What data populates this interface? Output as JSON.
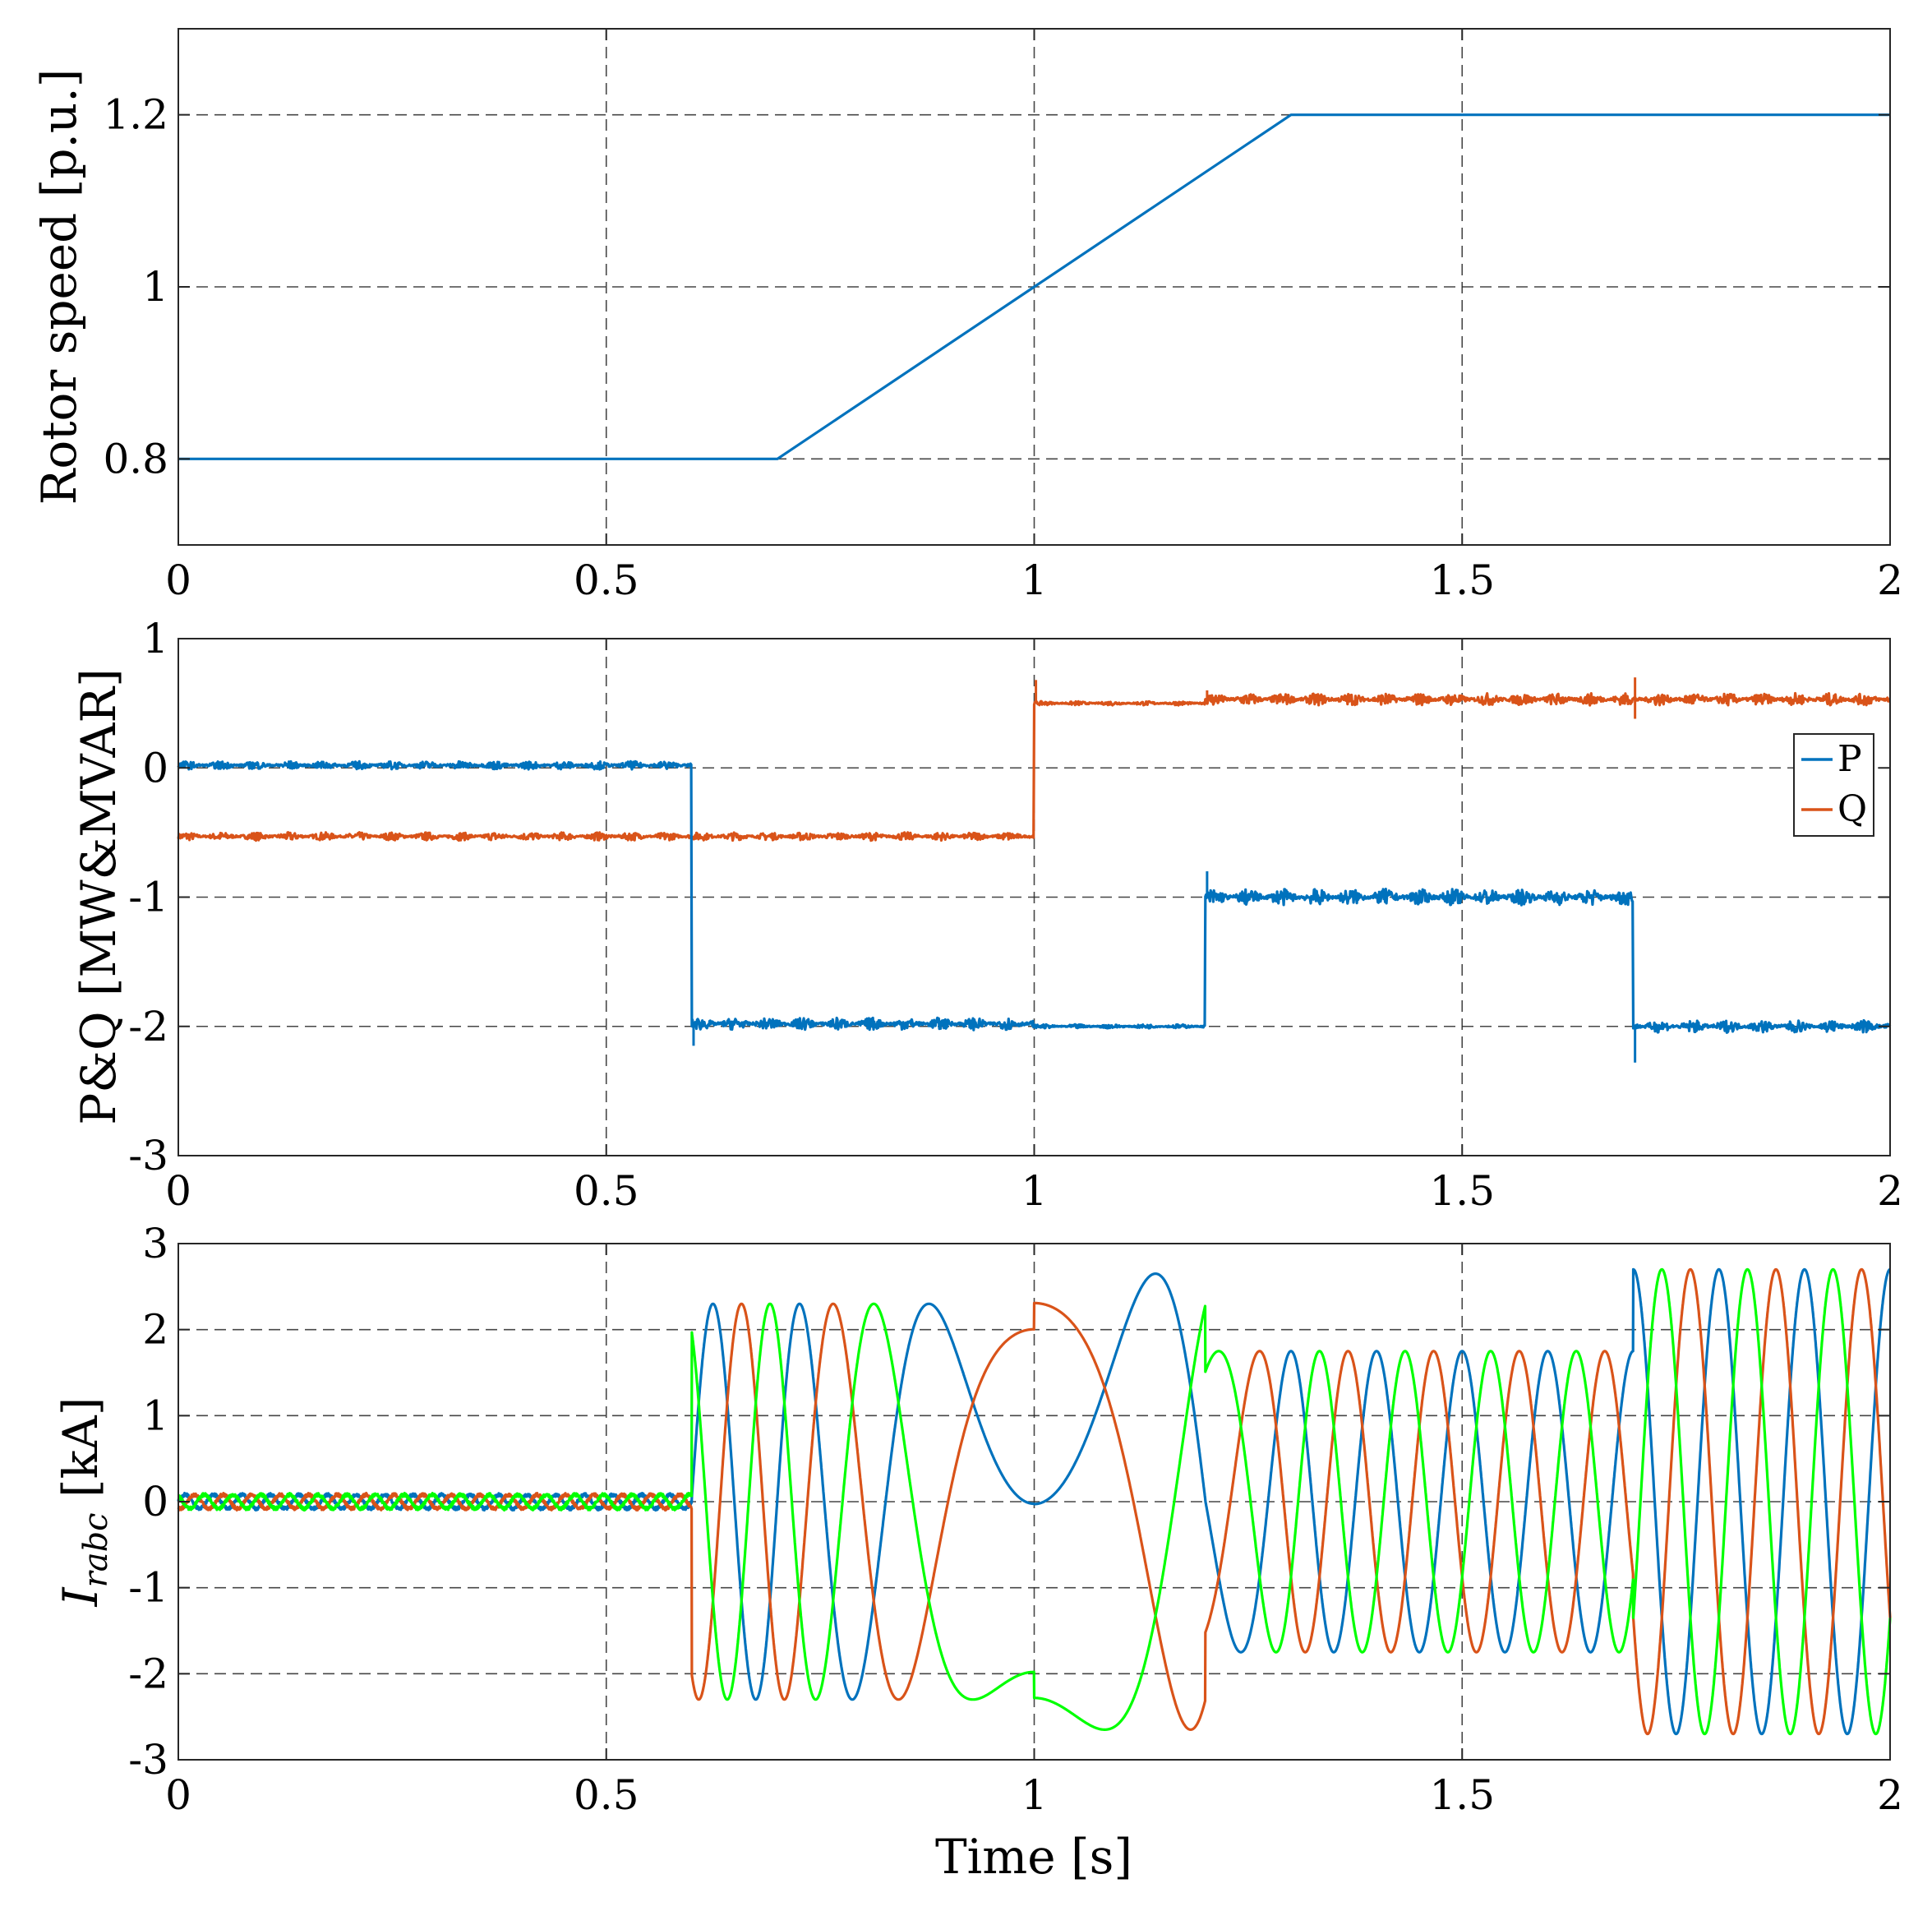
{
  "colors": {
    "blue": "#0072BD",
    "orange": "#D95319",
    "green": "#00FF00"
  },
  "chart_data": [
    {
      "id": "rotor-speed",
      "type": "line",
      "title": "",
      "xlabel": "",
      "ylabel": "Rotor speed [p.u.]",
      "xlim": [
        0,
        2
      ],
      "ylim": [
        0.7,
        1.3
      ],
      "xticks": [
        0,
        0.5,
        1,
        1.5,
        2
      ],
      "xtick_labels": [
        "0",
        "0.5",
        "1",
        "1.5",
        "2"
      ],
      "yticks": [
        0.8,
        1,
        1.2
      ],
      "ytick_labels": [
        "0.8",
        "1",
        "1.2"
      ],
      "grid": true,
      "legend": null,
      "series": [
        {
          "name": "Rotor speed",
          "color": "#0072BD",
          "x": [
            0,
            0.7,
            1.0,
            1.3,
            2.0
          ],
          "y": [
            0.8,
            0.8,
            1.0,
            1.2,
            1.2
          ]
        }
      ]
    },
    {
      "id": "power",
      "type": "line",
      "title": "",
      "xlabel": "",
      "ylabel": "P&Q [MW&MVAR]",
      "xlim": [
        0,
        2
      ],
      "ylim": [
        -3,
        1
      ],
      "xticks": [
        0,
        0.5,
        1,
        1.5,
        2
      ],
      "xtick_labels": [
        "0",
        "0.5",
        "1",
        "1.5",
        "2"
      ],
      "yticks": [
        -3,
        -2,
        -1,
        0,
        1
      ],
      "ytick_labels": [
        "-3",
        "-2",
        "-1",
        "0",
        "1"
      ],
      "grid": true,
      "legend": {
        "position": "right",
        "entries": [
          "P",
          "Q"
        ]
      },
      "series": [
        {
          "name": "P",
          "color": "#0072BD",
          "steps": [
            {
              "t0": 0.0,
              "t1": 0.6,
              "v": 0.02,
              "ripple": 0.02
            },
            {
              "t0": 0.6,
              "t1": 1.0,
              "v": -1.98,
              "ripple": 0.03
            },
            {
              "t0": 1.0,
              "t1": 1.2,
              "v": -2.0,
              "ripple": 0.01
            },
            {
              "t0": 1.2,
              "t1": 1.7,
              "v": -1.0,
              "ripple": 0.04
            },
            {
              "t0": 1.7,
              "t1": 2.0,
              "v": -2.0,
              "ripple": 0.03
            }
          ],
          "spikes": [
            [
              0.6,
              -2.15
            ],
            [
              1.2,
              -0.8
            ],
            [
              1.7,
              -2.28
            ]
          ]
        },
        {
          "name": "Q",
          "color": "#D95319",
          "steps": [
            {
              "t0": 0.0,
              "t1": 1.0,
              "v": -0.53,
              "ripple": 0.02
            },
            {
              "t0": 1.0,
              "t1": 1.2,
              "v": 0.5,
              "ripple": 0.01
            },
            {
              "t0": 1.2,
              "t1": 2.0,
              "v": 0.53,
              "ripple": 0.03
            }
          ],
          "spikes": [
            [
              1.0,
              0.68
            ],
            [
              1.2,
              0.6
            ],
            [
              1.7,
              0.7
            ],
            [
              1.7,
              0.38
            ]
          ]
        }
      ]
    },
    {
      "id": "rotor-currents",
      "type": "line",
      "title": "",
      "xlabel": "Time [s]",
      "ylabel": "I",
      "ylabel_subscript": "rabc",
      "ylabel_unit": " [kA]",
      "xlim": [
        0,
        2
      ],
      "ylim": [
        -3,
        3
      ],
      "xticks": [
        0,
        0.5,
        1,
        1.5,
        2
      ],
      "xtick_labels": [
        "0",
        "0.5",
        "1",
        "1.5",
        "2"
      ],
      "yticks": [
        -3,
        -2,
        -1,
        0,
        1,
        2,
        3
      ],
      "ytick_labels": [
        "-3",
        "-2",
        "-1",
        "0",
        "1",
        "2",
        "3"
      ],
      "grid": true,
      "legend": null,
      "series": [
        {
          "name": "Ira",
          "color": "#0072BD",
          "phase_deg": 0
        },
        {
          "name": "Irb",
          "color": "#D95319",
          "phase_deg": -120
        },
        {
          "name": "Irc",
          "color": "#00FF00",
          "phase_deg": 120
        }
      ],
      "segments": [
        {
          "t0": 0.0,
          "t1": 0.6,
          "amp": 0.08,
          "slip": -0.2,
          "cycles_per_s": 30
        },
        {
          "t0": 0.6,
          "t1": 0.7,
          "amp": 2.3,
          "slip": 0.2
        },
        {
          "t0": 0.7,
          "t1": 1.0,
          "amp": 2.3,
          "slip_start": 0.2,
          "slip_end": 0.0
        },
        {
          "t0": 1.0,
          "t1": 1.2,
          "amp": 2.65,
          "slip_start": 0.0,
          "slip_end": -0.1
        },
        {
          "t0": 1.2,
          "t1": 1.3,
          "amp": 1.75,
          "slip_start": -0.1,
          "slip_end": -0.2
        },
        {
          "t0": 1.3,
          "t1": 1.7,
          "amp": 1.75,
          "slip": -0.2
        },
        {
          "t0": 1.7,
          "t1": 2.0,
          "amp": 2.7,
          "slip": -0.2
        }
      ],
      "grid_frequency_hz": 50
    }
  ]
}
